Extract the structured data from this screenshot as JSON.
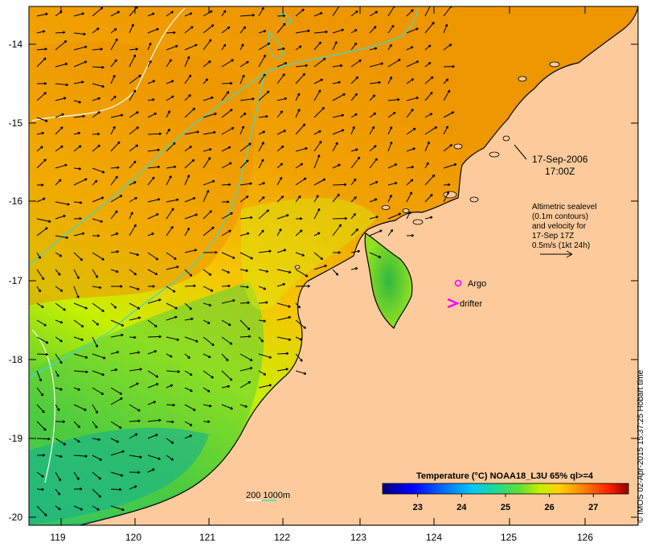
{
  "map": {
    "lon_ticks": [
      "119",
      "120",
      "121",
      "122",
      "123",
      "124",
      "125",
      "126"
    ],
    "lat_ticks": [
      "-14",
      "-15",
      "-16",
      "-17",
      "-18",
      "-19",
      "-20"
    ],
    "lon_range": [
      118.6,
      126.7
    ],
    "lat_range": [
      -20.1,
      -13.6
    ],
    "colors": {
      "land": "#fdcb9b",
      "coast": "#000000",
      "contour": "#3fd9c8",
      "arrow": "#000000"
    }
  },
  "annotations": {
    "date_line1": "17-Sep-2006",
    "date_line2": "17:00Z",
    "alt_line1": "Altimetric sealevel",
    "alt_line2": "(0.1m contours)",
    "alt_line3": "and velocity for",
    "alt_line4": "17-Sep 17Z",
    "alt_line5": "0.5m/s (1kt 24h)"
  },
  "legend": {
    "argo_label": "Argo",
    "drifter_label": "drifter",
    "depth_label": "200 1000m",
    "argo_color": "#ff00ff",
    "drifter_color": "#ff00ff"
  },
  "colorbar": {
    "title": "Temperature (°C) NOAA18_L3U 65% ql>=4",
    "ticks": [
      "23",
      "24",
      "25",
      "26",
      "27"
    ],
    "min": 22.2,
    "max": 27.8
  },
  "credit": "© IMOS 02-Apr-2015 15:37:25 Hobart time"
}
